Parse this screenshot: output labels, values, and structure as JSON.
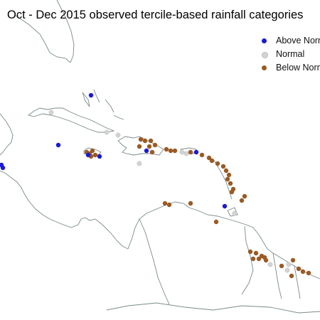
{
  "title": "Oct - Dec 2015 observed tercile-based rainfall categories",
  "legend": [
    {
      "label": "Above Normal",
      "color": "#1a1ad6"
    },
    {
      "label": "Normal",
      "color": "#d3d3d3"
    },
    {
      "label": "Below Normal",
      "color": "#9a5a24"
    }
  ],
  "colors": {
    "land_outline": "#7a8a8a",
    "background": "#ffffff"
  }
}
